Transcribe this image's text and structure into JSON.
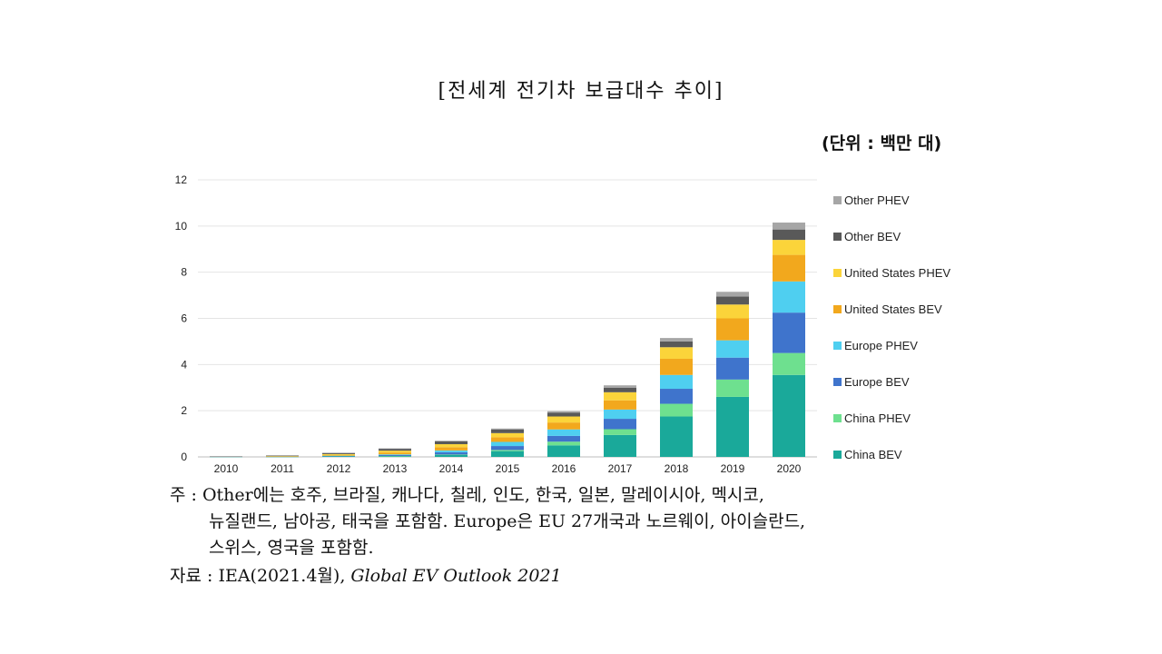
{
  "title": "[전세계 전기차 보급대수 추이]",
  "unit_label": "(단위 : 백만 대)",
  "chart_data": {
    "type": "bar",
    "stacked": true,
    "categories": [
      "2010",
      "2011",
      "2012",
      "2013",
      "2014",
      "2015",
      "2016",
      "2017",
      "2018",
      "2019",
      "2020"
    ],
    "ylim": [
      0,
      12
    ],
    "yticks": [
      0,
      2,
      4,
      6,
      8,
      10,
      12
    ],
    "grid": true,
    "legend_position": "right",
    "series": [
      {
        "name": "China BEV",
        "color": "#1aa99a",
        "values": [
          0.01,
          0.01,
          0.02,
          0.03,
          0.08,
          0.25,
          0.5,
          0.95,
          1.75,
          2.6,
          3.55
        ]
      },
      {
        "name": "China PHEV",
        "color": "#6ee08f",
        "values": [
          0.0,
          0.0,
          0.0,
          0.01,
          0.02,
          0.05,
          0.16,
          0.25,
          0.55,
          0.75,
          0.95
        ]
      },
      {
        "name": "Europe BEV",
        "color": "#3f74cc",
        "values": [
          0.0,
          0.01,
          0.02,
          0.04,
          0.1,
          0.17,
          0.25,
          0.45,
          0.65,
          0.95,
          1.75
        ]
      },
      {
        "name": "Europe PHEV",
        "color": "#4fcff0",
        "values": [
          0.0,
          0.0,
          0.01,
          0.03,
          0.08,
          0.18,
          0.28,
          0.4,
          0.6,
          0.75,
          1.35
        ]
      },
      {
        "name": "United States BEV",
        "color": "#f2a81d",
        "values": [
          0.0,
          0.01,
          0.03,
          0.08,
          0.14,
          0.2,
          0.3,
          0.4,
          0.7,
          0.95,
          1.15
        ]
      },
      {
        "name": "United States PHEV",
        "color": "#fbd43a",
        "values": [
          0.0,
          0.01,
          0.04,
          0.08,
          0.13,
          0.18,
          0.26,
          0.35,
          0.5,
          0.6,
          0.65
        ]
      },
      {
        "name": "Other BEV",
        "color": "#595959",
        "values": [
          0.01,
          0.02,
          0.05,
          0.08,
          0.12,
          0.15,
          0.17,
          0.2,
          0.25,
          0.35,
          0.45
        ]
      },
      {
        "name": "Other PHEV",
        "color": "#a6a6a6",
        "values": [
          0.0,
          0.0,
          0.01,
          0.02,
          0.03,
          0.05,
          0.06,
          0.1,
          0.15,
          0.2,
          0.3
        ]
      }
    ]
  },
  "notes": {
    "line1": "주 : Other에는 호주, 브라질, 캐나다, 칠레, 인도, 한국, 일본, 말레이시아, 멕시코,",
    "line2": "뉴질랜드, 남아공, 태국을 포함함. Europe은 EU 27개국과 노르웨이, 아이슬란드,",
    "line3": "스위스, 영국을 포함함.",
    "source_prefix": "자료 : IEA(2021.4월), ",
    "source_italic": "Global EV Outlook 2021"
  }
}
